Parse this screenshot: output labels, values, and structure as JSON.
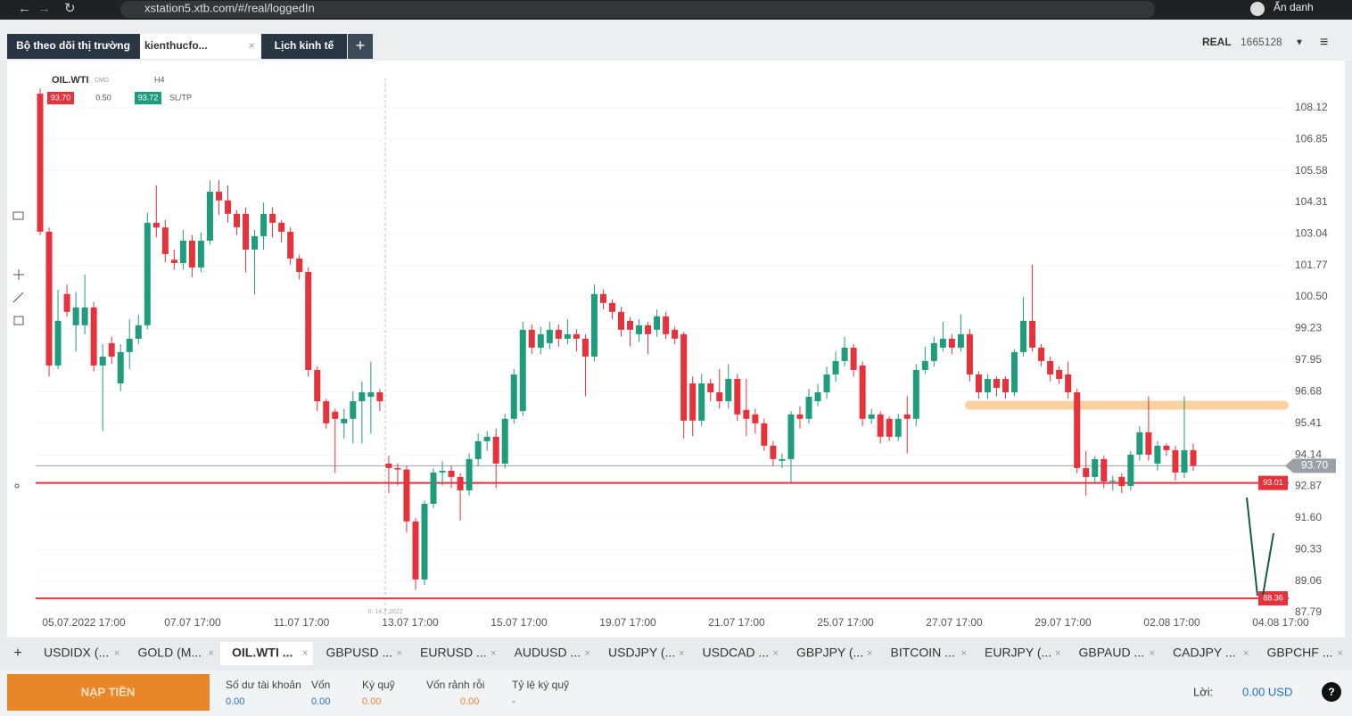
{
  "browser": {
    "url": "xstation5.xtb.com/#/real/loggedIn",
    "profile": "Ẩn danh"
  },
  "header": {
    "tabs": [
      "Bộ theo dõi thị trường",
      "kienthucfo...",
      "Lịch kinh tế"
    ],
    "mode": "REAL",
    "account": "1665128"
  },
  "chart": {
    "type": "candlestick",
    "symbol": "OIL.WTI",
    "group": "CMD",
    "interval": "H4",
    "sell": "93.70",
    "volume": "0.50",
    "buy": "93.72",
    "sltp": "SL/TP",
    "ylim": [
      87.68,
      109.59
    ],
    "yticks": [
      108.12,
      106.85,
      105.58,
      104.31,
      103.04,
      101.77,
      {
        "value": 100.5,
        "label": "100.50"
      },
      99.23,
      97.95,
      96.68,
      95.41,
      94.14,
      92.87,
      {
        "value": 91.6,
        "label": "91.60"
      },
      90.33,
      89.06,
      87.79
    ],
    "xlabels": [
      "05.07.2022 17:00",
      "07.07 17:00",
      "11.07 17:00",
      "13.07 17:00",
      "15.07 17:00",
      "19.07 17:00",
      "21.07 17:00",
      "25.07 17:00",
      "27.07 17:00",
      "29.07 17:00",
      "02.08 17:00",
      "04.08 17:00"
    ],
    "up_color": "#1e9c7c",
    "down_color": "#e5323b",
    "candles": [
      [
        108.69,
        108.9,
        103.0,
        103.13
      ],
      [
        103.13,
        103.3,
        97.3,
        97.74
      ],
      [
        97.74,
        100.8,
        97.6,
        99.54
      ],
      [
        100.62,
        101.0,
        99.7,
        99.9
      ],
      [
        99.36,
        100.7,
        98.3,
        100.08
      ],
      [
        99.36,
        101.4,
        99.0,
        100.08
      ],
      [
        100.08,
        100.3,
        97.5,
        97.74
      ],
      [
        97.74,
        98.6,
        95.1,
        98.1
      ],
      [
        98.64,
        98.9,
        97.8,
        98.1
      ],
      [
        97.02,
        98.6,
        96.7,
        98.28
      ],
      [
        98.28,
        99.6,
        97.6,
        98.82
      ],
      [
        98.82,
        99.8,
        98.6,
        99.36
      ],
      [
        99.36,
        103.9,
        99.2,
        103.49
      ],
      [
        103.49,
        105.0,
        102.9,
        103.3
      ],
      [
        103.3,
        103.6,
        101.9,
        102.23
      ],
      [
        102.0,
        102.4,
        101.6,
        101.87
      ],
      [
        101.87,
        103.2,
        101.6,
        102.77
      ],
      [
        102.77,
        103.0,
        101.3,
        101.69
      ],
      [
        101.69,
        103.1,
        101.5,
        102.77
      ],
      [
        102.77,
        105.2,
        102.6,
        104.74
      ],
      [
        104.74,
        105.2,
        103.8,
        104.39
      ],
      [
        104.39,
        105.0,
        103.5,
        103.85
      ],
      [
        103.85,
        104.0,
        103.0,
        103.31
      ],
      [
        103.85,
        104.1,
        101.5,
        102.41
      ],
      [
        102.41,
        103.2,
        100.6,
        102.95
      ],
      [
        102.95,
        104.3,
        102.4,
        103.85
      ],
      [
        103.85,
        104.1,
        102.9,
        103.49
      ],
      [
        103.49,
        103.6,
        102.7,
        103.13
      ],
      [
        103.13,
        103.3,
        101.8,
        102.05
      ],
      [
        102.05,
        102.2,
        101.2,
        101.51
      ],
      [
        101.51,
        101.7,
        97.3,
        97.56
      ],
      [
        97.56,
        97.7,
        95.9,
        96.3
      ],
      [
        96.3,
        96.4,
        95.2,
        95.41
      ],
      [
        95.88,
        96.0,
        93.4,
        95.59
      ],
      [
        95.41,
        96.0,
        94.8,
        95.59
      ],
      [
        95.59,
        96.7,
        94.6,
        96.3
      ],
      [
        96.3,
        97.1,
        94.6,
        96.66
      ],
      [
        96.48,
        97.9,
        95.0,
        96.66
      ],
      [
        96.66,
        96.8,
        95.9,
        96.3
      ],
      [
        93.79,
        94.1,
        92.6,
        93.61
      ],
      [
        93.61,
        93.8,
        92.9,
        93.55
      ],
      [
        93.55,
        93.7,
        91.0,
        91.46
      ],
      [
        91.46,
        91.6,
        88.7,
        89.12
      ],
      [
        89.12,
        92.3,
        88.9,
        92.17
      ],
      [
        92.17,
        93.6,
        92.0,
        93.43
      ],
      [
        93.43,
        93.9,
        92.9,
        93.5
      ],
      [
        93.5,
        93.7,
        92.8,
        93.25
      ],
      [
        93.25,
        93.4,
        91.5,
        92.71
      ],
      [
        92.71,
        94.2,
        92.5,
        93.97
      ],
      [
        93.97,
        95.0,
        93.7,
        94.69
      ],
      [
        94.69,
        95.1,
        94.3,
        94.87
      ],
      [
        94.87,
        95.2,
        92.8,
        93.79
      ],
      [
        93.79,
        95.8,
        93.6,
        95.59
      ],
      [
        95.59,
        97.6,
        95.4,
        97.38
      ],
      [
        95.9,
        99.5,
        95.7,
        99.18
      ],
      [
        99.18,
        99.4,
        98.2,
        98.46
      ],
      [
        98.46,
        99.3,
        98.2,
        99.0
      ],
      [
        98.64,
        99.5,
        98.4,
        99.18
      ],
      [
        99.18,
        99.4,
        98.5,
        98.82
      ],
      [
        98.82,
        99.6,
        98.6,
        99.0
      ],
      [
        99.0,
        99.2,
        98.3,
        98.82
      ],
      [
        98.82,
        99.0,
        96.5,
        98.1
      ],
      [
        98.1,
        101.0,
        97.9,
        100.62
      ],
      [
        100.62,
        100.8,
        100.0,
        100.26
      ],
      [
        100.26,
        100.4,
        99.6,
        99.9
      ],
      [
        99.9,
        100.1,
        98.9,
        99.18
      ],
      [
        99.54,
        99.7,
        98.5,
        99.18
      ],
      [
        99.0,
        99.6,
        98.7,
        99.36
      ],
      [
        99.36,
        99.5,
        98.2,
        99.0
      ],
      [
        99.18,
        100.0,
        98.9,
        99.72
      ],
      [
        99.72,
        99.9,
        98.8,
        99.0
      ],
      [
        99.18,
        99.3,
        98.6,
        98.82
      ],
      [
        99.0,
        99.1,
        94.8,
        95.52
      ],
      [
        97.02,
        97.3,
        94.9,
        95.52
      ],
      [
        95.52,
        97.4,
        95.3,
        97.02
      ],
      [
        97.02,
        97.2,
        96.3,
        96.66
      ],
      [
        96.66,
        97.6,
        96.0,
        96.3
      ],
      [
        96.3,
        97.8,
        96.0,
        97.2
      ],
      [
        97.2,
        97.4,
        95.5,
        95.77
      ],
      [
        95.95,
        97.2,
        94.9,
        95.59
      ],
      [
        95.77,
        96.0,
        95.0,
        95.41
      ],
      [
        95.41,
        95.6,
        94.3,
        94.51
      ],
      [
        94.51,
        94.7,
        93.7,
        93.97
      ],
      [
        93.9,
        94.2,
        93.6,
        93.97
      ],
      [
        93.97,
        95.9,
        93.0,
        95.77
      ],
      [
        95.77,
        96.1,
        95.2,
        95.59
      ],
      [
        95.59,
        96.8,
        95.4,
        96.48
      ],
      [
        96.3,
        97.0,
        96.1,
        96.66
      ],
      [
        96.66,
        97.7,
        96.4,
        97.38
      ],
      [
        97.38,
        98.3,
        97.1,
        97.92
      ],
      [
        97.92,
        98.9,
        97.7,
        98.46
      ],
      [
        98.46,
        98.6,
        97.3,
        97.56
      ],
      [
        97.74,
        97.9,
        95.3,
        95.59
      ],
      [
        95.59,
        96.0,
        95.4,
        95.77
      ],
      [
        95.77,
        95.9,
        94.6,
        94.87
      ],
      [
        95.59,
        95.7,
        94.7,
        94.87
      ],
      [
        94.87,
        95.8,
        94.7,
        95.59
      ],
      [
        95.77,
        96.5,
        94.2,
        95.59
      ],
      [
        95.59,
        97.8,
        95.3,
        97.56
      ],
      [
        97.56,
        98.5,
        97.4,
        97.92
      ],
      [
        97.92,
        98.9,
        97.7,
        98.64
      ],
      [
        98.46,
        99.5,
        98.3,
        98.82
      ],
      [
        98.82,
        99.0,
        98.2,
        98.46
      ],
      [
        98.46,
        99.8,
        98.3,
        99.0
      ],
      [
        99.0,
        99.2,
        97.1,
        97.38
      ],
      [
        97.38,
        97.5,
        96.4,
        96.66
      ],
      [
        96.66,
        97.4,
        96.4,
        97.2
      ],
      [
        97.2,
        97.3,
        96.5,
        96.84
      ],
      [
        97.2,
        97.3,
        96.4,
        96.66
      ],
      [
        96.66,
        98.4,
        96.5,
        98.28
      ],
      [
        98.28,
        100.5,
        98.1,
        99.54
      ],
      [
        99.54,
        101.8,
        98.3,
        98.46
      ],
      [
        98.46,
        98.6,
        97.7,
        97.92
      ],
      [
        97.92,
        98.1,
        97.1,
        97.38
      ],
      [
        97.56,
        97.7,
        97.0,
        97.2
      ],
      [
        97.38,
        97.9,
        96.4,
        96.66
      ],
      [
        96.66,
        96.8,
        93.4,
        93.61
      ],
      [
        93.61,
        94.3,
        92.5,
        93.25
      ],
      [
        93.25,
        94.1,
        93.0,
        93.97
      ],
      [
        93.97,
        94.1,
        92.8,
        93.07
      ],
      [
        93.07,
        93.3,
        92.7,
        93.1
      ],
      [
        93.25,
        93.4,
        92.6,
        92.89
      ],
      [
        92.89,
        94.3,
        92.7,
        94.15
      ],
      [
        94.15,
        95.3,
        93.9,
        95.05
      ],
      [
        95.05,
        96.5,
        93.9,
        94.15
      ],
      [
        93.79,
        94.7,
        93.5,
        94.51
      ],
      [
        94.51,
        94.6,
        94.1,
        94.33
      ],
      [
        94.33,
        94.5,
        93.1,
        93.43
      ],
      [
        93.43,
        96.5,
        93.2,
        94.33
      ],
      [
        94.33,
        94.6,
        93.5,
        93.7
      ]
    ],
    "levels": [
      {
        "value": 93.7,
        "label": "93.70",
        "color": "#9aa0a6"
      },
      {
        "value": 93.01,
        "label": "93.01",
        "color": "#e5323b"
      },
      {
        "value": 88.36,
        "label": "88.36",
        "color": "#e5323b"
      }
    ],
    "zone": 96.14,
    "marker": "II: 14.7.2022"
  },
  "instruments": [
    "USDIDX (...",
    "GOLD (M...",
    "OIL.WTI ...",
    "GBPUSD ...",
    "EURUSD ...",
    "AUDUSD ...",
    "USDJPY (...",
    "USDCAD ...",
    "GBPJPY (...",
    "BITCOIN ...",
    "EURJPY (...",
    "GBPAUD ...",
    "CADJPY ...",
    "GBPCHF ..."
  ],
  "footer": {
    "deposit": "NẠP TIỀN",
    "fields": [
      {
        "label": "Số dư tài khoản",
        "value": "0.00"
      },
      {
        "label": "Vốn",
        "value": "0.00"
      },
      {
        "label": "Ký quỹ",
        "value": "0.00"
      },
      {
        "label": "Vốn rảnh rỗi",
        "value": "0.00"
      },
      {
        "label": "Tỷ lệ ký quỹ",
        "value": "-"
      }
    ],
    "profit_label": "Lời:",
    "profit_value": "0.00 USD"
  }
}
